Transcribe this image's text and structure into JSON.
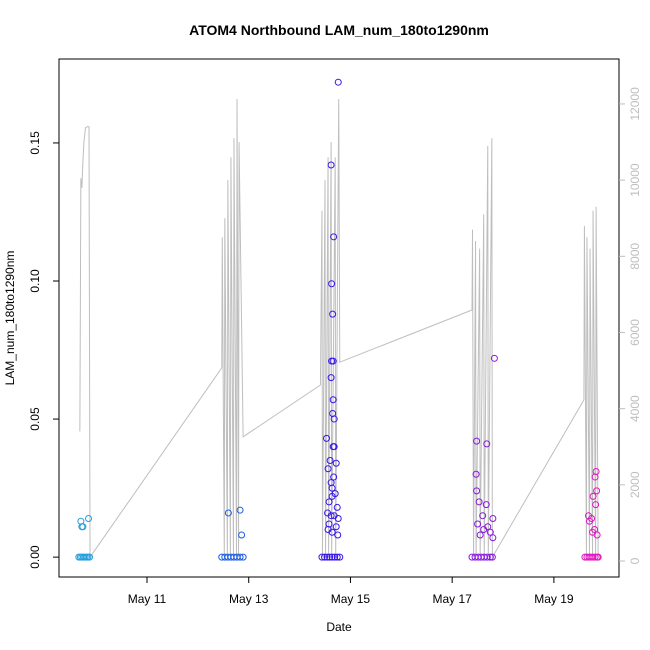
{
  "chart_data": {
    "type": "scatter",
    "title": "ATOM4 Northbound LAM_num_180to1290nm",
    "x_label": "Date",
    "y_label": "LAM_num_180to1290nm",
    "xlim": [
      9.27,
      20.28
    ],
    "xticks": [
      {
        "value": 11,
        "label": "May 11"
      },
      {
        "value": 13,
        "label": "May 13"
      },
      {
        "value": 15,
        "label": "May 15"
      },
      {
        "value": 17,
        "label": "May 17"
      },
      {
        "value": 19,
        "label": "May 19"
      }
    ],
    "ylim": [
      -0.0072,
      0.1804
    ],
    "yticks": [
      {
        "value": 0,
        "label": "0.00"
      },
      {
        "value": 0.05,
        "label": "0.05"
      },
      {
        "value": 0.1,
        "label": "0.10"
      },
      {
        "value": 0.15,
        "label": "0.15"
      }
    ],
    "y2lim": [
      -420,
      13180
    ],
    "y2ticks": [
      0,
      2000,
      4000,
      6000,
      8000,
      10000,
      12000
    ],
    "series": [
      {
        "type": "line",
        "axis": "y2",
        "color": "#bebebe",
        "x": [
          9.68,
          9.7,
          9.72,
          9.74,
          9.76,
          9.79,
          9.82,
          9.86,
          9.88,
          12.47,
          12.48,
          12.52,
          12.53,
          12.58,
          12.59,
          12.64,
          12.65,
          12.7,
          12.71,
          12.76,
          12.77,
          12.8,
          12.81,
          12.89,
          14.41,
          14.44,
          14.45,
          14.5,
          14.51,
          14.56,
          14.57,
          14.62,
          14.63,
          14.7,
          14.71,
          14.76,
          14.77,
          14.79,
          17.39,
          17.4,
          17.42,
          17.46,
          17.47,
          17.54,
          17.55,
          17.62,
          17.63,
          17.7,
          17.71,
          17.78,
          17.79,
          19.59,
          19.6,
          19.64,
          19.65,
          19.7,
          19.71,
          19.76,
          19.77,
          19.82,
          19.83,
          19.87
        ],
        "values": [
          3400,
          10050,
          9800,
          10500,
          11000,
          11370,
          11400,
          11400,
          100,
          5070,
          8500,
          100,
          9000,
          100,
          10000,
          100,
          10600,
          100,
          11100,
          100,
          12130,
          100,
          11000,
          3260,
          4620,
          9200,
          100,
          10000,
          100,
          10600,
          100,
          11000,
          100,
          10600,
          100,
          10300,
          12130,
          5220,
          6590,
          8700,
          100,
          8400,
          100,
          8200,
          100,
          9100,
          100,
          10900,
          100,
          11100,
          100,
          4230,
          8800,
          100,
          8500,
          100,
          8200,
          100,
          9200,
          100,
          9300,
          100
        ]
      },
      {
        "color": "#27a0dc",
        "x": [
          9.66,
          9.69,
          9.72,
          9.75,
          9.78,
          9.81,
          9.84,
          9.87,
          9.7,
          9.72,
          9.74,
          9.85
        ],
        "values": [
          0,
          0,
          0,
          0,
          0,
          0,
          0,
          0,
          0.013,
          0.011,
          0.011,
          0.014
        ]
      },
      {
        "color": "#1c5ce2",
        "x": [
          12.47,
          12.53,
          12.59,
          12.65,
          12.71,
          12.77,
          12.83,
          12.89,
          12.6,
          12.83,
          12.86
        ],
        "values": [
          0,
          0,
          0,
          0,
          0,
          0,
          0,
          0,
          0.016,
          0.017,
          0.008
        ]
      },
      {
        "color": "#3818e8",
        "x": [
          14.44,
          14.49,
          14.54,
          14.59,
          14.64,
          14.69,
          14.74,
          14.79,
          14.76,
          14.62,
          14.67,
          14.63,
          14.65,
          14.63,
          14.66,
          14.62,
          14.66,
          14.65,
          14.68,
          14.53,
          14.66,
          14.68,
          14.6,
          14.72,
          14.56,
          14.67,
          14.62,
          14.64,
          14.7,
          14.64,
          14.58,
          14.74,
          14.55,
          14.62,
          14.68,
          14.76,
          14.58,
          14.72,
          14.56,
          14.64,
          14.75
        ],
        "values": [
          0,
          0,
          0,
          0,
          0,
          0,
          0,
          0,
          0.172,
          0.142,
          0.116,
          0.099,
          0.088,
          0.071,
          0.071,
          0.065,
          0.057,
          0.052,
          0.05,
          0.043,
          0.04,
          0.04,
          0.035,
          0.034,
          0.032,
          0.029,
          0.027,
          0.025,
          0.023,
          0.022,
          0.02,
          0.018,
          0.016,
          0.015,
          0.015,
          0.014,
          0.012,
          0.011,
          0.01,
          0.009,
          0.008
        ]
      },
      {
        "color": "#8a18e0",
        "x": [
          17.39,
          17.45,
          17.51,
          17.57,
          17.63,
          17.69,
          17.75,
          17.79,
          17.83,
          17.48,
          17.68,
          17.47,
          17.48,
          17.53,
          17.67,
          17.6,
          17.8,
          17.5,
          17.7,
          17.62,
          17.75,
          17.55,
          17.8
        ],
        "values": [
          0,
          0,
          0,
          0,
          0,
          0,
          0,
          0,
          0.072,
          0.042,
          0.041,
          0.03,
          0.024,
          0.02,
          0.019,
          0.015,
          0.014,
          0.012,
          0.011,
          0.01,
          0.009,
          0.008,
          0.007
        ]
      },
      {
        "color": "#e018c0",
        "x": [
          19.61,
          19.65,
          19.69,
          19.73,
          19.77,
          19.81,
          19.85,
          19.87,
          19.83,
          19.81,
          19.84,
          19.77,
          19.82,
          19.68,
          19.74,
          19.7,
          19.8,
          19.76,
          19.85
        ],
        "values": [
          0,
          0,
          0,
          0,
          0,
          0,
          0,
          0,
          0.031,
          0.029,
          0.024,
          0.022,
          0.019,
          0.015,
          0.014,
          0.013,
          0.01,
          0.009,
          0.008
        ]
      }
    ]
  }
}
